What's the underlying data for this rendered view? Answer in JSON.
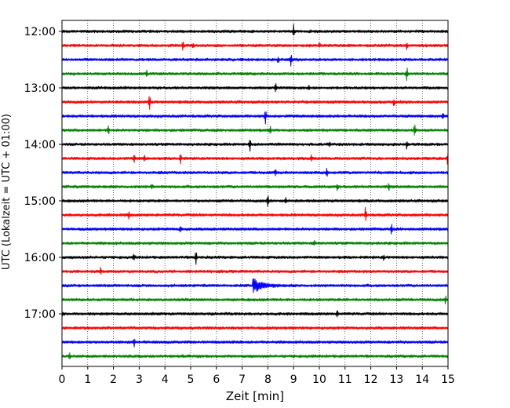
{
  "chart_data": {
    "type": "line",
    "title": "",
    "xlabel": "Zeit  [min]",
    "ylabel": "UTC (Lokalzeit = UTC + 01:00)",
    "xlim": [
      0,
      15
    ],
    "x_ticks": [
      "0",
      "1",
      "2",
      "3",
      "4",
      "5",
      "6",
      "7",
      "8",
      "9",
      "10",
      "11",
      "12",
      "13",
      "14",
      "15"
    ],
    "y_tick_labels": [
      "12:00",
      "13:00",
      "14:00",
      "15:00",
      "16:00",
      "17:00"
    ],
    "trace_colors": [
      "#000000",
      "#ff0000",
      "#0000ff",
      "#008000"
    ],
    "grid": {
      "x": true,
      "y": false,
      "style": "dotted"
    },
    "traces": [
      {
        "time": "12:00",
        "color": "#000000",
        "events": [
          {
            "min": 9.0,
            "amp": 0.9
          }
        ]
      },
      {
        "time": "12:15",
        "color": "#ff0000",
        "events": [
          {
            "min": 4.7,
            "amp": 0.6
          },
          {
            "min": 5.1,
            "amp": 0.4
          },
          {
            "min": 10.0,
            "amp": 0.3
          },
          {
            "min": 13.4,
            "amp": 0.5
          }
        ]
      },
      {
        "time": "12:30",
        "color": "#0000ff",
        "events": [
          {
            "min": 8.9,
            "amp": 1.0
          },
          {
            "min": 8.4,
            "amp": 0.4
          }
        ]
      },
      {
        "time": "12:45",
        "color": "#008000",
        "events": [
          {
            "min": 3.3,
            "amp": 0.4
          },
          {
            "min": 13.4,
            "amp": 1.0
          }
        ]
      },
      {
        "time": "13:00",
        "color": "#000000",
        "events": [
          {
            "min": 8.3,
            "amp": 0.5
          },
          {
            "min": 9.6,
            "amp": 0.3
          }
        ]
      },
      {
        "time": "13:15",
        "color": "#ff0000",
        "events": [
          {
            "min": 3.4,
            "amp": 1.2
          },
          {
            "min": 12.9,
            "amp": 0.5
          }
        ]
      },
      {
        "time": "13:30",
        "color": "#0000ff",
        "events": [
          {
            "min": 7.9,
            "amp": 1.1
          },
          {
            "min": 14.8,
            "amp": 0.4
          }
        ]
      },
      {
        "time": "13:45",
        "color": "#008000",
        "events": [
          {
            "min": 1.8,
            "amp": 0.6
          },
          {
            "min": 8.1,
            "amp": 0.6
          },
          {
            "min": 13.7,
            "amp": 0.9
          }
        ]
      },
      {
        "time": "14:00",
        "color": "#000000",
        "events": [
          {
            "min": 7.3,
            "amp": 1.1
          },
          {
            "min": 13.4,
            "amp": 0.6
          },
          {
            "min": 10.4,
            "amp": 0.3
          }
        ]
      },
      {
        "time": "14:15",
        "color": "#ff0000",
        "events": [
          {
            "min": 2.8,
            "amp": 0.7
          },
          {
            "min": 3.2,
            "amp": 0.5
          },
          {
            "min": 4.6,
            "amp": 0.8
          },
          {
            "min": 9.7,
            "amp": 0.5
          },
          {
            "min": 15.0,
            "amp": 1.2
          }
        ]
      },
      {
        "time": "14:30",
        "color": "#0000ff",
        "events": [
          {
            "min": 8.3,
            "amp": 0.4
          },
          {
            "min": 10.3,
            "amp": 0.7
          }
        ]
      },
      {
        "time": "14:45",
        "color": "#008000",
        "events": [
          {
            "min": 3.5,
            "amp": 0.4
          },
          {
            "min": 10.7,
            "amp": 0.4
          },
          {
            "min": 12.7,
            "amp": 0.4
          }
        ]
      },
      {
        "time": "15:00",
        "color": "#000000",
        "events": [
          {
            "min": 8.0,
            "amp": 1.2
          },
          {
            "min": 8.7,
            "amp": 0.4
          }
        ]
      },
      {
        "time": "15:15",
        "color": "#ff0000",
        "events": [
          {
            "min": 2.6,
            "amp": 0.5
          },
          {
            "min": 11.8,
            "amp": 1.1
          }
        ]
      },
      {
        "time": "15:30",
        "color": "#0000ff",
        "events": [
          {
            "min": 4.6,
            "amp": 0.6
          },
          {
            "min": 12.8,
            "amp": 0.7
          }
        ]
      },
      {
        "time": "15:45",
        "color": "#008000",
        "events": [
          {
            "min": 9.8,
            "amp": 0.4
          }
        ]
      },
      {
        "time": "16:00",
        "color": "#000000",
        "events": [
          {
            "min": 5.2,
            "amp": 1.1
          },
          {
            "min": 2.8,
            "amp": 0.4
          },
          {
            "min": 12.5,
            "amp": 0.3
          }
        ]
      },
      {
        "time": "16:15",
        "color": "#ff0000",
        "events": [
          {
            "min": 1.5,
            "amp": 0.5
          }
        ]
      },
      {
        "time": "16:30",
        "color": "#0000ff",
        "events": [
          {
            "min": 7.4,
            "amp": 1.0,
            "coda": true
          }
        ]
      },
      {
        "time": "16:45",
        "color": "#008000",
        "events": [
          {
            "min": 14.9,
            "amp": 0.5
          }
        ]
      },
      {
        "time": "17:00",
        "color": "#000000",
        "events": [
          {
            "min": 0.0,
            "amp": 0.5
          },
          {
            "min": 10.7,
            "amp": 0.4
          }
        ]
      },
      {
        "time": "17:15",
        "color": "#ff0000",
        "events": []
      },
      {
        "time": "17:30",
        "color": "#0000ff",
        "events": [
          {
            "min": 2.8,
            "amp": 0.6
          }
        ]
      },
      {
        "time": "17:45",
        "color": "#008000",
        "events": [
          {
            "min": 0.3,
            "amp": 0.4
          }
        ]
      }
    ]
  }
}
